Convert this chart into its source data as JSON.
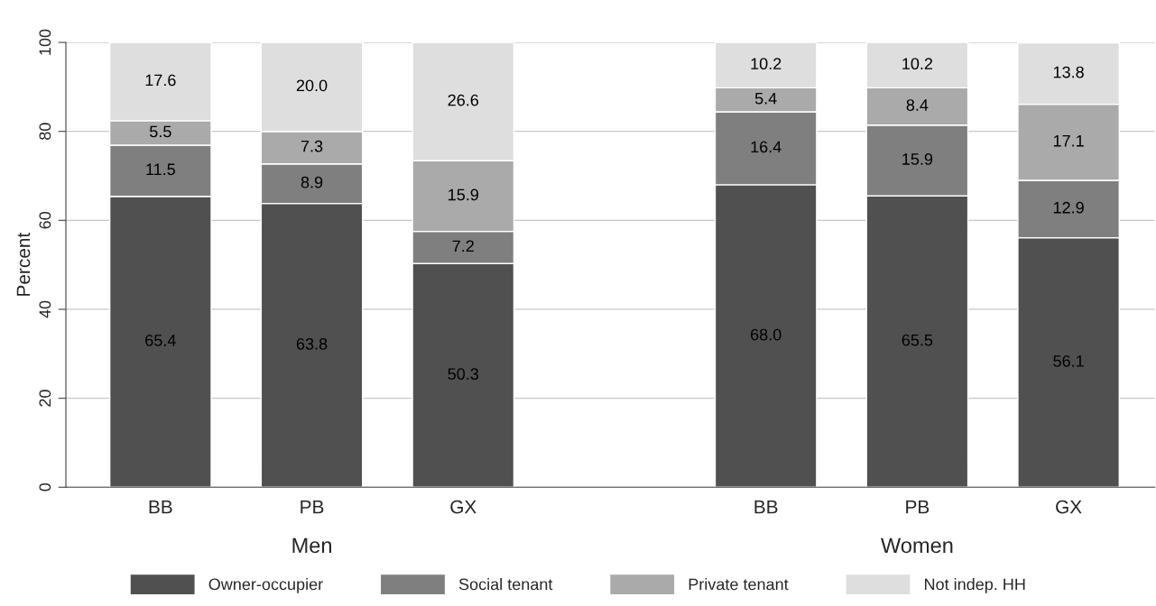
{
  "chart_data": {
    "type": "bar",
    "stacked": true,
    "ylabel": "Percent",
    "categories": [
      "BB",
      "PB",
      "GX",
      null,
      "BB",
      "PB",
      "GX"
    ],
    "series": [
      {
        "name": "Owner-occupier",
        "color": "#505050",
        "values": [
          65.4,
          63.8,
          50.3,
          null,
          68.0,
          65.5,
          56.1
        ],
        "value_labels": [
          "65.4",
          "63.8",
          "50.3",
          null,
          "68.0",
          "65.5",
          "56.1"
        ]
      },
      {
        "name": "Social tenant",
        "color": "#7f7f7f",
        "values": [
          11.5,
          8.9,
          7.2,
          null,
          16.4,
          15.9,
          12.9
        ],
        "value_labels": [
          "11.5",
          "8.9",
          "7.2",
          null,
          "16.4",
          "15.9",
          "12.9"
        ]
      },
      {
        "name": "Private tenant",
        "color": "#aaaaaa",
        "values": [
          5.5,
          7.3,
          15.9,
          null,
          5.4,
          8.4,
          17.1
        ],
        "value_labels": [
          "5.5",
          "7.3",
          "15.9",
          null,
          "5.4",
          "8.4",
          "17.1"
        ]
      },
      {
        "name": "Not indep. HH",
        "color": "#dedede",
        "values": [
          17.6,
          20.0,
          26.6,
          null,
          10.2,
          10.2,
          13.8
        ],
        "value_labels": [
          "17.6",
          "20.0",
          "26.6",
          null,
          "10.2",
          "10.2",
          "13.8"
        ]
      }
    ],
    "annotations": [
      "Men",
      "Women"
    ],
    "ylim": [
      0,
      100
    ],
    "yticks": [
      0,
      20,
      40,
      60,
      80,
      100
    ],
    "grid": "y",
    "legend": "bottom"
  }
}
